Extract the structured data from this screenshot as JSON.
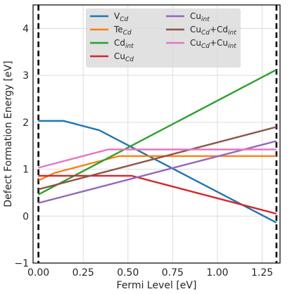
{
  "chart_data": {
    "type": "line",
    "title": "",
    "xlabel": "Fermi Level [eV]",
    "ylabel": "Defect Formation Energy [eV]",
    "xlim": [
      -0.03,
      1.35
    ],
    "ylim": [
      -1,
      4.5
    ],
    "xticks": [
      "0.00",
      "0.25",
      "0.50",
      "0.75",
      "1.00",
      "1.25"
    ],
    "yticks": [
      "-1",
      "0",
      "1",
      "2",
      "3",
      "4"
    ],
    "grid": true,
    "legend": {
      "placement": "top-center",
      "columns": 2
    },
    "vlines": [
      {
        "x": 0.0,
        "style": "dashed",
        "color": "#000000"
      },
      {
        "x": 1.33,
        "style": "dashed",
        "color": "#000000"
      }
    ],
    "series": [
      {
        "name": "V",
        "sub": "Cd",
        "color": "#1f77b4",
        "points": [
          [
            0.0,
            2.03
          ],
          [
            0.14,
            2.03
          ],
          [
            0.34,
            1.83
          ],
          [
            1.33,
            -0.14
          ]
        ]
      },
      {
        "name": "Te",
        "sub": "Cd",
        "color": "#ff7f0e",
        "points": [
          [
            0.0,
            0.76
          ],
          [
            0.09,
            0.92
          ],
          [
            0.45,
            1.28
          ],
          [
            1.33,
            1.28
          ]
        ]
      },
      {
        "name": "Cd",
        "sub": "int",
        "color": "#2ca02c",
        "points": [
          [
            0.0,
            0.46
          ],
          [
            1.33,
            3.12
          ]
        ]
      },
      {
        "name": "Cu",
        "sub": "Cd",
        "color": "#d62728",
        "points": [
          [
            0.0,
            0.86
          ],
          [
            0.52,
            0.86
          ],
          [
            1.33,
            0.05
          ]
        ]
      },
      {
        "name": "Cu",
        "sub": "int",
        "color": "#9467bd",
        "points": [
          [
            0.0,
            0.28
          ],
          [
            1.33,
            1.6
          ]
        ]
      },
      {
        "name": "Cu",
        "sub": "Cd",
        "name2": "+Cd",
        "sub2": "int",
        "color": "#8c564b",
        "points": [
          [
            0.0,
            0.57
          ],
          [
            1.33,
            1.9
          ]
        ]
      },
      {
        "name": "Cu",
        "sub": "Cd",
        "name2": "+Cu",
        "sub2": "int",
        "color": "#e377c2",
        "points": [
          [
            0.0,
            1.03
          ],
          [
            0.39,
            1.42
          ],
          [
            1.33,
            1.42
          ]
        ]
      }
    ]
  }
}
